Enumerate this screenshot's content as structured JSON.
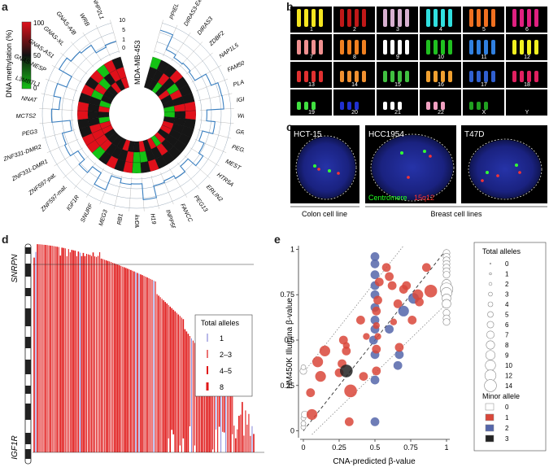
{
  "panel_letters": {
    "a": "a",
    "b": "b",
    "c": "c",
    "d": "d",
    "e": "e"
  },
  "panel_a": {
    "colorbar_label": "DNA methylation (%)",
    "colorbar_ticks": [
      "100",
      "50",
      "0"
    ],
    "cell_line": "MDA-MB-453",
    "radial_ticks": [
      "10",
      "5",
      "1",
      "0"
    ],
    "genes": [
      "PPIEL",
      "DIRAS3-Ex2",
      "DIRAS3",
      "ZDBF2",
      "NAP1L5",
      "FAM50B",
      "PLAGL1",
      "IGF2R",
      "WDR27",
      "GRB10",
      "PEG10",
      "MEST",
      "HTR5A",
      "ERLIN2",
      "PEG13",
      "FANCC",
      "INPP5F/V2",
      "H19",
      "kvDMR1",
      "RB1",
      "MEG3",
      "SNURF",
      "IGF1R",
      "ZNF597-mat.",
      "ZNF597-pat.",
      "ZNF331-DMR1",
      "ZNF331-DMR2",
      "PEG3",
      "MCTS2",
      "NNAT",
      "L3MBTL1",
      "GNAS-NESP",
      "GNAS-AS1",
      "GNAS-XL",
      "GNAS-A/B",
      "WRB",
      "NHP2L1"
    ],
    "colors": {
      "high": "#e0101a",
      "mid": "#161616",
      "low": "#14c214",
      "line": "#3a7fc0"
    }
  },
  "panel_b": {
    "labels": [
      "1",
      "2",
      "3",
      "4",
      "5",
      "6",
      "7",
      "8",
      "9",
      "10",
      "11",
      "12",
      "13",
      "14",
      "15",
      "16",
      "17",
      "18",
      "19",
      "20",
      "21",
      "22",
      "X",
      "Y"
    ]
  },
  "panel_c": {
    "cells": [
      {
        "name": "HCT-15"
      },
      {
        "name": "HCC1954"
      },
      {
        "name": "T47D"
      }
    ],
    "legend_centromere": "Centromere",
    "legend_probe": "15q12",
    "group_colon": "Colon cell line",
    "group_breast": "Breast cell lines"
  },
  "panel_d": {
    "top_gene": "SNRPN",
    "bottom_gene": "IGF1R",
    "legend_title": "Total alleles",
    "legend_items": [
      "1",
      "2–3",
      "4–5",
      "8"
    ]
  },
  "chart_data": {
    "type": "scatter",
    "xlabel": "CNA-predicted β-value",
    "ylabel": "HM450K Illumina β-value",
    "xlim": [
      0,
      1
    ],
    "ylim": [
      -0.02,
      1.02
    ],
    "x_ticks": [
      "0",
      "0.25",
      "0.5",
      "0.75",
      "1"
    ],
    "y_ticks": [
      "0",
      "0.25",
      "0.5",
      "0.75",
      "1"
    ],
    "legend_total_title": "Total alleles",
    "legend_total": [
      "0",
      "1",
      "2",
      "3",
      "4",
      "5",
      "6",
      "7",
      "8",
      "9",
      "10",
      "12",
      "14"
    ],
    "legend_minor_title": "Minor allele",
    "legend_minor": [
      {
        "label": "0",
        "color": "#ffffff"
      },
      {
        "label": "1",
        "color": "#d9473a"
      },
      {
        "label": "2",
        "color": "#5566aa"
      },
      {
        "label": "3",
        "color": "#222222"
      }
    ],
    "points": [
      [
        0,
        0.02,
        1,
        0
      ],
      [
        0,
        0.04,
        1,
        0
      ],
      [
        0,
        0.07,
        1,
        0
      ],
      [
        0.01,
        0.09,
        2,
        0
      ],
      [
        0,
        0.33,
        2,
        0
      ],
      [
        0,
        0.35,
        1,
        0
      ],
      [
        0.05,
        0.21,
        3,
        1
      ],
      [
        0.06,
        0.09,
        4,
        1
      ],
      [
        0.12,
        0.3,
        4,
        1
      ],
      [
        0.1,
        0.38,
        4,
        1
      ],
      [
        0.15,
        0.44,
        4,
        1
      ],
      [
        0.25,
        0.32,
        3,
        1
      ],
      [
        0.27,
        0.37,
        3,
        1
      ],
      [
        0.3,
        0.44,
        3,
        1
      ],
      [
        0.32,
        0.05,
        3,
        1
      ],
      [
        0.3,
        0.33,
        5,
        3
      ],
      [
        0.33,
        0.22,
        5,
        1
      ],
      [
        0.28,
        0.5,
        3,
        1
      ],
      [
        0.3,
        0.47,
        2,
        1
      ],
      [
        0.42,
        0.3,
        3,
        1
      ],
      [
        0.4,
        0.61,
        3,
        1
      ],
      [
        0.44,
        0.52,
        2,
        1
      ],
      [
        0.5,
        0.05,
        3,
        2
      ],
      [
        0.5,
        0.28,
        3,
        2
      ],
      [
        0.5,
        0.42,
        3,
        2
      ],
      [
        0.49,
        0.5,
        3,
        2
      ],
      [
        0.5,
        0.56,
        3,
        2
      ],
      [
        0.5,
        0.61,
        3,
        2
      ],
      [
        0.5,
        0.68,
        3,
        2
      ],
      [
        0.5,
        0.75,
        3,
        2
      ],
      [
        0.5,
        0.8,
        3,
        2
      ],
      [
        0.5,
        0.86,
        3,
        2
      ],
      [
        0.5,
        0.92,
        3,
        2
      ],
      [
        0.5,
        0.96,
        3,
        2
      ],
      [
        0.51,
        0.33,
        3,
        1
      ],
      [
        0.51,
        0.45,
        3,
        1
      ],
      [
        0.52,
        0.52,
        2,
        1
      ],
      [
        0.51,
        0.58,
        2,
        1
      ],
      [
        0.51,
        0.66,
        3,
        1
      ],
      [
        0.52,
        0.72,
        3,
        1
      ],
      [
        0.53,
        0.82,
        3,
        1
      ],
      [
        0.58,
        0.9,
        3,
        1
      ],
      [
        0.6,
        0.85,
        3,
        1
      ],
      [
        0.62,
        0.8,
        3,
        1
      ],
      [
        0.6,
        0.56,
        3,
        2
      ],
      [
        0.63,
        0.6,
        2,
        1
      ],
      [
        0.66,
        0.7,
        3,
        1
      ],
      [
        0.67,
        0.42,
        3,
        2
      ],
      [
        0.66,
        0.36,
        3,
        2
      ],
      [
        0.67,
        0.46,
        3,
        1
      ],
      [
        0.7,
        0.78,
        3,
        1
      ],
      [
        0.72,
        0.8,
        3,
        1
      ],
      [
        0.7,
        0.66,
        4,
        2
      ],
      [
        0.77,
        0.73,
        4,
        2
      ],
      [
        0.76,
        0.61,
        3,
        1
      ],
      [
        0.8,
        0.75,
        4,
        1
      ],
      [
        0.81,
        0.71,
        3,
        1
      ],
      [
        0.89,
        0.77,
        5,
        1
      ],
      [
        0.86,
        0.9,
        3,
        1
      ],
      [
        1,
        0.98,
        2,
        0
      ],
      [
        1,
        0.96,
        2,
        0
      ],
      [
        1,
        0.94,
        2,
        0
      ],
      [
        1,
        0.92,
        2,
        0
      ],
      [
        1,
        0.9,
        2,
        0
      ],
      [
        1,
        0.88,
        2,
        0
      ],
      [
        1,
        0.86,
        2,
        0
      ],
      [
        1,
        0.81,
        3,
        0
      ],
      [
        1,
        0.78,
        5,
        0
      ],
      [
        1,
        0.76,
        4,
        0
      ],
      [
        1,
        0.73,
        3,
        0
      ],
      [
        1,
        0.7,
        3,
        0
      ],
      [
        1,
        0.65,
        2,
        0
      ],
      [
        1,
        0.62,
        2,
        0
      ],
      [
        1,
        0.6,
        2,
        0
      ]
    ]
  }
}
